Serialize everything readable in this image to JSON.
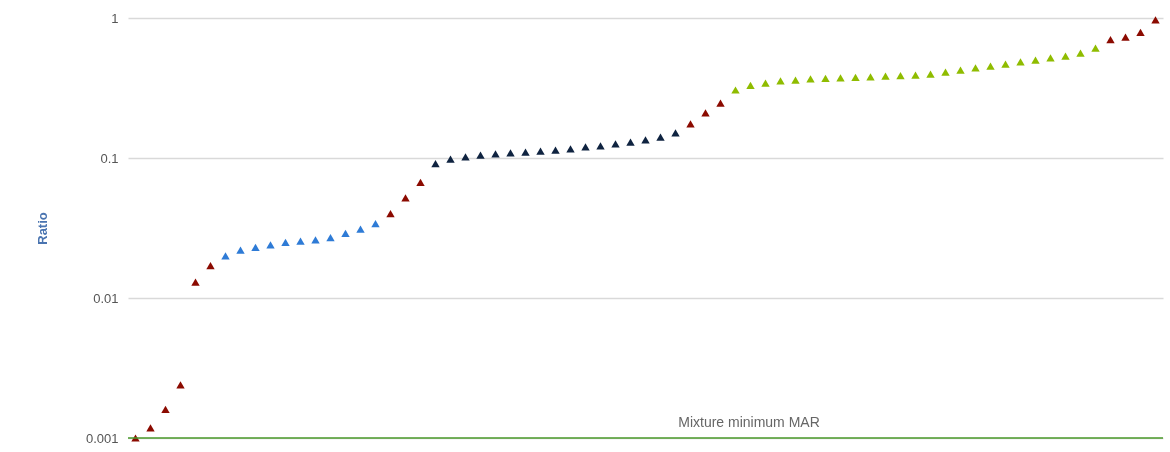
{
  "chart_data": {
    "type": "scatter",
    "ylabel": "Ratio",
    "categories": [
      null,
      null,
      null,
      null,
      null,
      null,
      null,
      null,
      null,
      null,
      null,
      null,
      null,
      null,
      null,
      null,
      null,
      null,
      null,
      null,
      null,
      null,
      null,
      null,
      null,
      null,
      null,
      null,
      null,
      null,
      null,
      null,
      null,
      null,
      null,
      null,
      null,
      null,
      null,
      null,
      null,
      null,
      null,
      null,
      null,
      null,
      null,
      null,
      null,
      null,
      null,
      null,
      null,
      null,
      null,
      null,
      null,
      null,
      null,
      null,
      null,
      null,
      null,
      null,
      null,
      null,
      null,
      null,
      null
    ],
    "values": [
      0.001,
      0.00118,
      0.0016,
      0.0024,
      0.013,
      0.017,
      0.02,
      0.022,
      0.023,
      0.024,
      0.025,
      0.0255,
      0.026,
      0.027,
      0.029,
      0.031,
      0.034,
      0.04,
      0.052,
      0.067,
      0.091,
      0.098,
      0.102,
      0.105,
      0.107,
      0.109,
      0.11,
      0.112,
      0.114,
      0.116,
      0.12,
      0.122,
      0.126,
      0.13,
      0.135,
      0.141,
      0.151,
      0.175,
      0.21,
      0.247,
      0.306,
      0.33,
      0.343,
      0.355,
      0.36,
      0.367,
      0.37,
      0.373,
      0.376,
      0.379,
      0.385,
      0.388,
      0.391,
      0.398,
      0.411,
      0.425,
      0.44,
      0.454,
      0.469,
      0.485,
      0.5,
      0.518,
      0.535,
      0.562,
      0.61,
      0.7,
      0.73,
      0.79,
      0.97
    ],
    "colors": [
      "#8b0a00",
      "#8b0a00",
      "#8b0a00",
      "#8b0a00",
      "#8b0a00",
      "#8b0a00",
      "#2e7bd6",
      "#2e7bd6",
      "#2e7bd6",
      "#2e7bd6",
      "#2e7bd6",
      "#2e7bd6",
      "#2e7bd6",
      "#2e7bd6",
      "#2e7bd6",
      "#2e7bd6",
      "#2e7bd6",
      "#8b0a00",
      "#8b0a00",
      "#8b0a00",
      "#0f2340",
      "#0f2340",
      "#0f2340",
      "#0f2340",
      "#0f2340",
      "#0f2340",
      "#0f2340",
      "#0f2340",
      "#0f2340",
      "#0f2340",
      "#0f2340",
      "#0f2340",
      "#0f2340",
      "#0f2340",
      "#0f2340",
      "#0f2340",
      "#0f2340",
      "#8b0a00",
      "#8b0a00",
      "#8b0a00",
      "#8fbc00",
      "#8fbc00",
      "#8fbc00",
      "#8fbc00",
      "#8fbc00",
      "#8fbc00",
      "#8fbc00",
      "#8fbc00",
      "#8fbc00",
      "#8fbc00",
      "#8fbc00",
      "#8fbc00",
      "#8fbc00",
      "#8fbc00",
      "#8fbc00",
      "#8fbc00",
      "#8fbc00",
      "#8fbc00",
      "#8fbc00",
      "#8fbc00",
      "#8fbc00",
      "#8fbc00",
      "#8fbc00",
      "#8fbc00",
      "#8fbc00",
      "#8b0a00",
      "#8b0a00",
      "#8b0a00",
      "#8b0a00"
    ],
    "log": "y",
    "ylim": [
      0.001,
      1
    ],
    "yticks": [
      0.001,
      0.01,
      0.1,
      1
    ],
    "grid": "y",
    "marker": "triangle",
    "tick_labels": "y",
    "ref_lines": [
      {
        "axis": "y",
        "value": 0.001,
        "label": "Mixture minimum MAR",
        "color": "#4a9a2a"
      }
    ]
  }
}
